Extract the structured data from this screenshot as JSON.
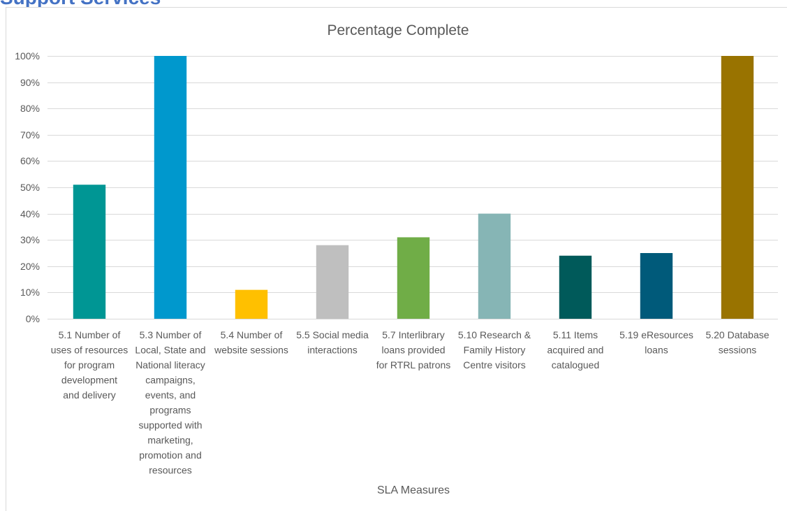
{
  "page": {
    "heading": "Support Services"
  },
  "chart_data": {
    "type": "bar",
    "title": "Percentage Complete",
    "xlabel": "SLA Measures",
    "ylabel": "",
    "ylim": [
      0,
      100
    ],
    "yticks": [
      0,
      10,
      20,
      30,
      40,
      50,
      60,
      70,
      80,
      90,
      100
    ],
    "ytick_labels": [
      "0%",
      "10%",
      "20%",
      "30%",
      "40%",
      "50%",
      "60%",
      "70%",
      "80%",
      "90%",
      "100%"
    ],
    "grid": true,
    "categories": [
      [
        "5.1 Number of",
        "uses of resources",
        "for program",
        "development",
        "and delivery"
      ],
      [
        "5.3 Number of",
        "Local, State and",
        "National literacy",
        "campaigns,",
        "events, and",
        "programs",
        "supported with",
        "marketing,",
        "promotion and",
        "resources"
      ],
      [
        "5.4 Number of",
        "website sessions"
      ],
      [
        "5.5 Social media",
        "interactions"
      ],
      [
        "5.7 Interlibrary",
        "loans provided",
        "for RTRL patrons"
      ],
      [
        "5.10 Research &",
        "Family History",
        "Centre visitors"
      ],
      [
        "5.11 Items",
        "acquired and",
        "catalogued"
      ],
      [
        "5.19 eResources",
        "loans"
      ],
      [
        "5.20 Database",
        "sessions"
      ]
    ],
    "values": [
      51,
      100,
      11,
      28,
      31,
      40,
      24,
      25,
      100
    ],
    "colors": [
      "#009694",
      "#0098CD",
      "#FFC000",
      "#BFBFBF",
      "#70AD47",
      "#86B5B5",
      "#005A5A",
      "#005A7A",
      "#997300"
    ]
  }
}
